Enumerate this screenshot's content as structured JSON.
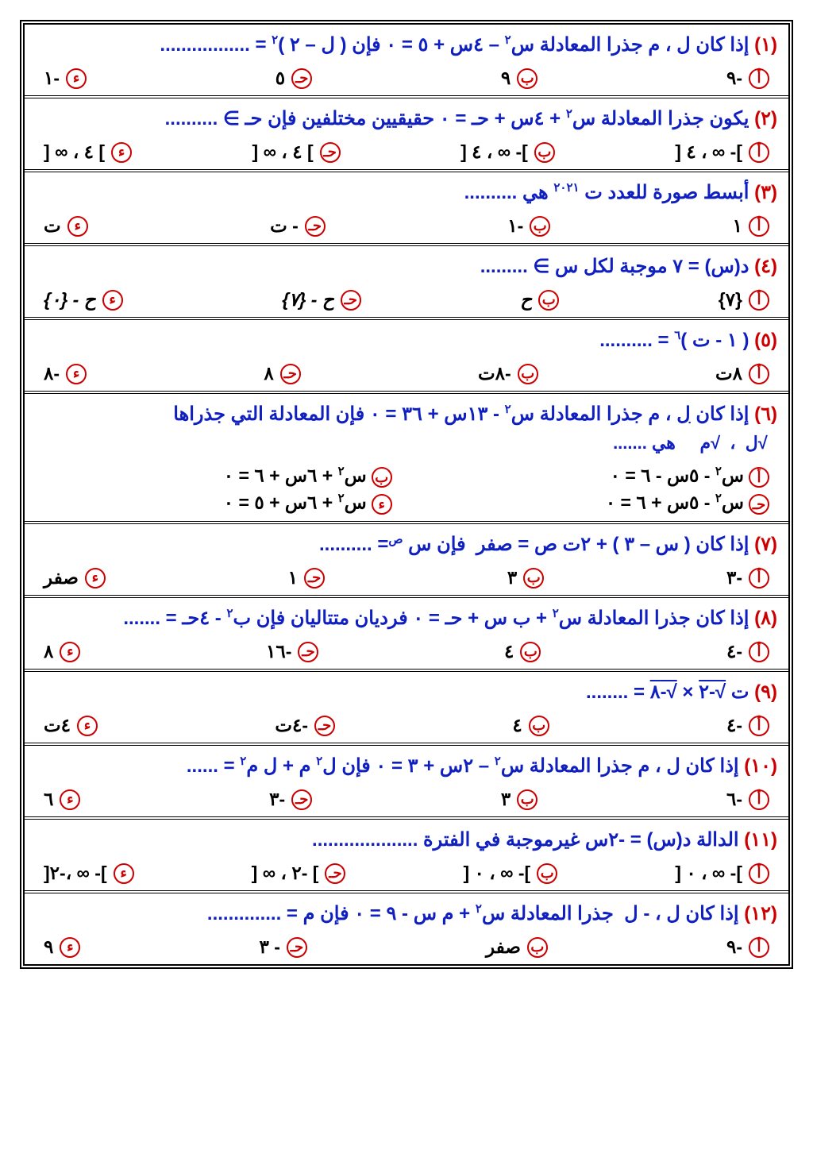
{
  "page": {
    "border_color": "#000000",
    "question_color": "#1020c0",
    "marker_color": "#c00000",
    "option_text_color": "#000000",
    "background": "#ffffff",
    "q_fontsize": 24,
    "opt_fontsize": 23
  },
  "markers": {
    "a": "أ",
    "b": "ب",
    "c": "حـ",
    "d": "ء"
  },
  "q1": {
    "num": "(١)",
    "text": "إذا كان ل ، م جذرا المعادلة س٢ – ٤س + ٥ = ٠ فإن ( ل – ٢ )٢ = .................",
    "opts": {
      "a": "-٩",
      "b": "٩",
      "c": "٥",
      "d": "-١"
    }
  },
  "q2": {
    "num": "(٢)",
    "text": "يكون جذرا المعادلة س٢ + ٤س + حـ = ٠ حقيقيين مختلفين فإن حـ ∋ ..........",
    "opts": {
      "a": "]- ∞ ، ٤ [",
      "b": "]- ∞ ، ٤ [",
      "c": "] ٤ ، ∞ [",
      "d": "] ٤ ، ∞ ["
    }
  },
  "q3": {
    "num": "(٣)",
    "text": "أبسط صورة للعدد ت ٢٠٢١ هي ..........",
    "opts": {
      "a": "١",
      "b": "-١",
      "c": "- ت",
      "d": "ت"
    }
  },
  "q4": {
    "num": "(٤)",
    "text": "د(س) = ٧ موجبة لكل س ∋ .........",
    "opts": {
      "a": "{٧}",
      "b": "ح",
      "c": "ح - {٧}",
      "d": "ح - {٠}"
    }
  },
  "q5": {
    "num": "(٥)",
    "text": "( ١ - ت )٦ = ..........",
    "opts": {
      "a": "٨ت",
      "b": "-٨ت",
      "c": "٨",
      "d": "-٨"
    }
  },
  "q6": {
    "num": "(٦)",
    "text": "إذا كان ل ، م جذرا المعادلة س٢ - ١٣س + ٣٦ = ٠ فإن المعادلة التي جذراها",
    "text2": "√ل  ،  √م     هي .......",
    "opts": {
      "a": "س٢ - ٥س - ٦ = ٠",
      "b": "س٢ + ٦س + ٦ = ٠",
      "c": "س٢ - ٥س + ٦ = ٠",
      "d": "س٢ + ٦س + ٥ = ٠"
    }
  },
  "q7": {
    "num": "(٧)",
    "text": "إذا كان ( س – ٣ ) + ٢ت ص = صفر  فإن س ص= ..........",
    "opts": {
      "a": "-٣",
      "b": "٣",
      "c": "١",
      "d": "صفر"
    }
  },
  "q8": {
    "num": "(٨)",
    "text": "إذا كان جذرا المعادلة س٢ + ب س + حـ = ٠ فرديان متتاليان فإن ب٢ - ٤حـ = .......",
    "opts": {
      "a": "-٤",
      "b": "٤",
      "c": "-١٦",
      "d": "٨"
    }
  },
  "q9": {
    "num": "(٩)",
    "text": "ت √-٢ × √-٨ = ........",
    "opts": {
      "a": "-٤",
      "b": "٤",
      "c": "-٤ت",
      "d": "٤ت"
    }
  },
  "q10": {
    "num": "(١٠)",
    "text": "إذا كان ل ، م جذرا المعادلة س٢ – ٢س + ٣ = ٠ فإن ل٢ م + ل م٢ = ......",
    "opts": {
      "a": "-٦",
      "b": "٣",
      "c": "-٣",
      "d": "٦"
    }
  },
  "q11": {
    "num": "(١١)",
    "text": "الدالة د(س) = -٢س غيرموجبة في الفترة ....................",
    "opts": {
      "a": "]- ∞ ، ٠ [",
      "b": "]- ∞ ، ٠ [",
      "c": "] -٢ ، ∞ [",
      "d": "]- ∞ ،-٢["
    }
  },
  "q12": {
    "num": "(١٢)",
    "text": "إذا كان ل ، - ل  جذرا المعادلة س٢ + م س - ٩ = ٠ فإن م = ..............",
    "opts": {
      "a": "-٩",
      "b": "صفر",
      "c": "- ٣",
      "d": "٩"
    }
  }
}
